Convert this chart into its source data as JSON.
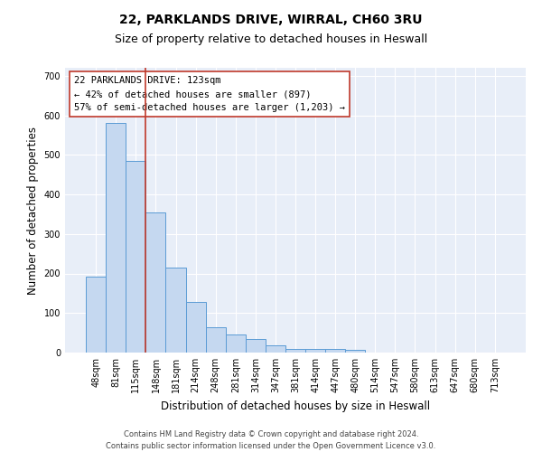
{
  "title1": "22, PARKLANDS DRIVE, WIRRAL, CH60 3RU",
  "title2": "Size of property relative to detached houses in Heswall",
  "xlabel": "Distribution of detached houses by size in Heswall",
  "ylabel": "Number of detached properties",
  "categories": [
    "48sqm",
    "81sqm",
    "115sqm",
    "148sqm",
    "181sqm",
    "214sqm",
    "248sqm",
    "281sqm",
    "314sqm",
    "347sqm",
    "381sqm",
    "414sqm",
    "447sqm",
    "480sqm",
    "514sqm",
    "547sqm",
    "580sqm",
    "613sqm",
    "647sqm",
    "680sqm",
    "713sqm"
  ],
  "values": [
    192,
    580,
    485,
    355,
    215,
    128,
    63,
    45,
    35,
    18,
    10,
    10,
    10,
    8,
    0,
    0,
    0,
    0,
    0,
    0,
    0
  ],
  "bar_color": "#c5d8f0",
  "bar_edge_color": "#5b9bd5",
  "vline_x": 2.5,
  "vline_color": "#c0392b",
  "annotation_text": "22 PARKLANDS DRIVE: 123sqm\n← 42% of detached houses are smaller (897)\n57% of semi-detached houses are larger (1,203) →",
  "annotation_box_color": "white",
  "annotation_box_edge_color": "#c0392b",
  "ylim": [
    0,
    720
  ],
  "yticks": [
    0,
    100,
    200,
    300,
    400,
    500,
    600,
    700
  ],
  "background_color": "#e8eef8",
  "grid_color": "white",
  "footer": "Contains HM Land Registry data © Crown copyright and database right 2024.\nContains public sector information licensed under the Open Government Licence v3.0.",
  "title1_fontsize": 10,
  "title2_fontsize": 9,
  "xlabel_fontsize": 8.5,
  "ylabel_fontsize": 8.5,
  "tick_fontsize": 7,
  "annotation_fontsize": 7.5,
  "footer_fontsize": 6
}
